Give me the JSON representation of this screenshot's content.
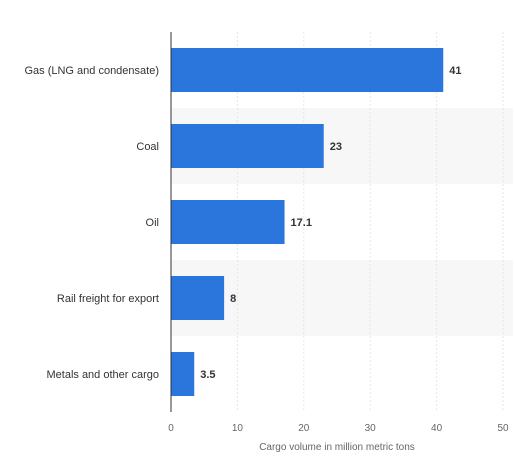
{
  "chart_data": {
    "type": "bar",
    "orientation": "horizontal",
    "title": "",
    "xlabel": "Cargo volume in million metric tons",
    "ylabel": "",
    "categories": [
      "Gas (LNG and condensate)",
      "Coal",
      "Oil",
      "Rail freight for export",
      "Metals and other cargo"
    ],
    "values": [
      41,
      23,
      17.1,
      8,
      3.5
    ],
    "value_labels": [
      "41",
      "23",
      "17.1",
      "8",
      "3.5"
    ],
    "xlim": [
      0,
      50
    ],
    "xticks": [
      "0",
      "10",
      "20",
      "30",
      "40",
      "50"
    ],
    "grid": true,
    "legend": "none",
    "colors": {
      "bar": "#2a76dd",
      "band": "#f7f7f7",
      "gridline": "#e6e6e6",
      "axis": "#333333"
    }
  }
}
